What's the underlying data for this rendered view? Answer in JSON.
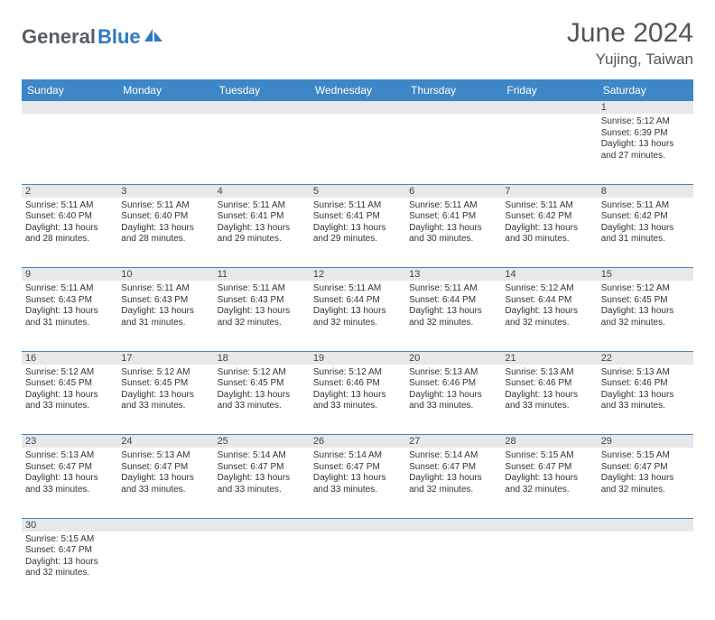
{
  "logo": {
    "part1": "General",
    "part2": "Blue"
  },
  "title": "June 2024",
  "location": "Yujing, Taiwan",
  "weekday_headers": [
    "Sunday",
    "Monday",
    "Tuesday",
    "Wednesday",
    "Thursday",
    "Friday",
    "Saturday"
  ],
  "colors": {
    "header_bg": "#3e86c6",
    "header_text": "#ffffff",
    "daynum_bg": "#e7e8ea",
    "row_border": "#3e86c6",
    "text": "#333333",
    "title_text": "#555555",
    "logo_gray": "#555d66",
    "logo_blue": "#2e7ac2"
  },
  "typography": {
    "title_fontsize": 30,
    "location_fontsize": 17,
    "header_fontsize": 12,
    "daynum_fontsize": 11,
    "cell_fontsize": 10
  },
  "weeks": [
    [
      null,
      null,
      null,
      null,
      null,
      null,
      {
        "n": "1",
        "sunrise": "Sunrise: 5:12 AM",
        "sunset": "Sunset: 6:39 PM",
        "day1": "Daylight: 13 hours",
        "day2": "and 27 minutes."
      }
    ],
    [
      {
        "n": "2",
        "sunrise": "Sunrise: 5:11 AM",
        "sunset": "Sunset: 6:40 PM",
        "day1": "Daylight: 13 hours",
        "day2": "and 28 minutes."
      },
      {
        "n": "3",
        "sunrise": "Sunrise: 5:11 AM",
        "sunset": "Sunset: 6:40 PM",
        "day1": "Daylight: 13 hours",
        "day2": "and 28 minutes."
      },
      {
        "n": "4",
        "sunrise": "Sunrise: 5:11 AM",
        "sunset": "Sunset: 6:41 PM",
        "day1": "Daylight: 13 hours",
        "day2": "and 29 minutes."
      },
      {
        "n": "5",
        "sunrise": "Sunrise: 5:11 AM",
        "sunset": "Sunset: 6:41 PM",
        "day1": "Daylight: 13 hours",
        "day2": "and 29 minutes."
      },
      {
        "n": "6",
        "sunrise": "Sunrise: 5:11 AM",
        "sunset": "Sunset: 6:41 PM",
        "day1": "Daylight: 13 hours",
        "day2": "and 30 minutes."
      },
      {
        "n": "7",
        "sunrise": "Sunrise: 5:11 AM",
        "sunset": "Sunset: 6:42 PM",
        "day1": "Daylight: 13 hours",
        "day2": "and 30 minutes."
      },
      {
        "n": "8",
        "sunrise": "Sunrise: 5:11 AM",
        "sunset": "Sunset: 6:42 PM",
        "day1": "Daylight: 13 hours",
        "day2": "and 31 minutes."
      }
    ],
    [
      {
        "n": "9",
        "sunrise": "Sunrise: 5:11 AM",
        "sunset": "Sunset: 6:43 PM",
        "day1": "Daylight: 13 hours",
        "day2": "and 31 minutes."
      },
      {
        "n": "10",
        "sunrise": "Sunrise: 5:11 AM",
        "sunset": "Sunset: 6:43 PM",
        "day1": "Daylight: 13 hours",
        "day2": "and 31 minutes."
      },
      {
        "n": "11",
        "sunrise": "Sunrise: 5:11 AM",
        "sunset": "Sunset: 6:43 PM",
        "day1": "Daylight: 13 hours",
        "day2": "and 32 minutes."
      },
      {
        "n": "12",
        "sunrise": "Sunrise: 5:11 AM",
        "sunset": "Sunset: 6:44 PM",
        "day1": "Daylight: 13 hours",
        "day2": "and 32 minutes."
      },
      {
        "n": "13",
        "sunrise": "Sunrise: 5:11 AM",
        "sunset": "Sunset: 6:44 PM",
        "day1": "Daylight: 13 hours",
        "day2": "and 32 minutes."
      },
      {
        "n": "14",
        "sunrise": "Sunrise: 5:12 AM",
        "sunset": "Sunset: 6:44 PM",
        "day1": "Daylight: 13 hours",
        "day2": "and 32 minutes."
      },
      {
        "n": "15",
        "sunrise": "Sunrise: 5:12 AM",
        "sunset": "Sunset: 6:45 PM",
        "day1": "Daylight: 13 hours",
        "day2": "and 32 minutes."
      }
    ],
    [
      {
        "n": "16",
        "sunrise": "Sunrise: 5:12 AM",
        "sunset": "Sunset: 6:45 PM",
        "day1": "Daylight: 13 hours",
        "day2": "and 33 minutes."
      },
      {
        "n": "17",
        "sunrise": "Sunrise: 5:12 AM",
        "sunset": "Sunset: 6:45 PM",
        "day1": "Daylight: 13 hours",
        "day2": "and 33 minutes."
      },
      {
        "n": "18",
        "sunrise": "Sunrise: 5:12 AM",
        "sunset": "Sunset: 6:45 PM",
        "day1": "Daylight: 13 hours",
        "day2": "and 33 minutes."
      },
      {
        "n": "19",
        "sunrise": "Sunrise: 5:12 AM",
        "sunset": "Sunset: 6:46 PM",
        "day1": "Daylight: 13 hours",
        "day2": "and 33 minutes."
      },
      {
        "n": "20",
        "sunrise": "Sunrise: 5:13 AM",
        "sunset": "Sunset: 6:46 PM",
        "day1": "Daylight: 13 hours",
        "day2": "and 33 minutes."
      },
      {
        "n": "21",
        "sunrise": "Sunrise: 5:13 AM",
        "sunset": "Sunset: 6:46 PM",
        "day1": "Daylight: 13 hours",
        "day2": "and 33 minutes."
      },
      {
        "n": "22",
        "sunrise": "Sunrise: 5:13 AM",
        "sunset": "Sunset: 6:46 PM",
        "day1": "Daylight: 13 hours",
        "day2": "and 33 minutes."
      }
    ],
    [
      {
        "n": "23",
        "sunrise": "Sunrise: 5:13 AM",
        "sunset": "Sunset: 6:47 PM",
        "day1": "Daylight: 13 hours",
        "day2": "and 33 minutes."
      },
      {
        "n": "24",
        "sunrise": "Sunrise: 5:13 AM",
        "sunset": "Sunset: 6:47 PM",
        "day1": "Daylight: 13 hours",
        "day2": "and 33 minutes."
      },
      {
        "n": "25",
        "sunrise": "Sunrise: 5:14 AM",
        "sunset": "Sunset: 6:47 PM",
        "day1": "Daylight: 13 hours",
        "day2": "and 33 minutes."
      },
      {
        "n": "26",
        "sunrise": "Sunrise: 5:14 AM",
        "sunset": "Sunset: 6:47 PM",
        "day1": "Daylight: 13 hours",
        "day2": "and 33 minutes."
      },
      {
        "n": "27",
        "sunrise": "Sunrise: 5:14 AM",
        "sunset": "Sunset: 6:47 PM",
        "day1": "Daylight: 13 hours",
        "day2": "and 32 minutes."
      },
      {
        "n": "28",
        "sunrise": "Sunrise: 5:15 AM",
        "sunset": "Sunset: 6:47 PM",
        "day1": "Daylight: 13 hours",
        "day2": "and 32 minutes."
      },
      {
        "n": "29",
        "sunrise": "Sunrise: 5:15 AM",
        "sunset": "Sunset: 6:47 PM",
        "day1": "Daylight: 13 hours",
        "day2": "and 32 minutes."
      }
    ],
    [
      {
        "n": "30",
        "sunrise": "Sunrise: 5:15 AM",
        "sunset": "Sunset: 6:47 PM",
        "day1": "Daylight: 13 hours",
        "day2": "and 32 minutes."
      },
      null,
      null,
      null,
      null,
      null,
      null
    ]
  ]
}
